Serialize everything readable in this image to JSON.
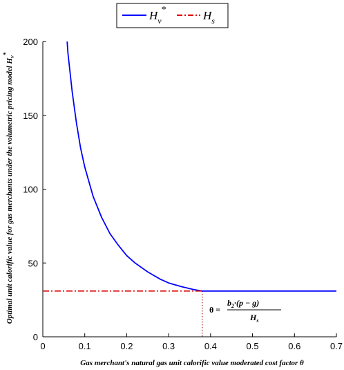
{
  "chart_data": {
    "type": "line",
    "xlabel": "Gas merchant's natural gas unit calorific value moderated cost factor θ",
    "ylabel": "Optimal unit calorific value for gas merchants under the volumetric pricing model H",
    "ylabel_sub": "v",
    "ylabel_sup": "*",
    "xlim": [
      0,
      0.7
    ],
    "ylim": [
      0,
      200
    ],
    "x_ticks": [
      "0",
      "0.1",
      "0.2",
      "0.3",
      "0.4",
      "0.5",
      "0.6",
      "0.7"
    ],
    "y_ticks": [
      "0",
      "50",
      "100",
      "150",
      "200"
    ],
    "legend_position": "top-center",
    "series": [
      {
        "name": "H",
        "name_sub": "v",
        "name_sup": "*",
        "color": "#0000ff",
        "style": "solid",
        "x": [
          0.058,
          0.06,
          0.07,
          0.08,
          0.09,
          0.1,
          0.12,
          0.14,
          0.16,
          0.18,
          0.2,
          0.22,
          0.25,
          0.28,
          0.3,
          0.33,
          0.36,
          0.38,
          0.4,
          0.5,
          0.6,
          0.7
        ],
        "y": [
          200,
          192,
          166,
          145,
          128,
          115,
          95,
          81,
          70,
          62,
          55,
          50,
          44,
          39,
          36.5,
          34,
          32,
          31,
          31,
          31,
          31,
          31
        ]
      },
      {
        "name": "H",
        "name_sub": "s",
        "color": "#dd0000",
        "style": "dash-dot",
        "x": [
          0,
          0.38
        ],
        "y": [
          31,
          31
        ]
      }
    ],
    "annotations": [
      {
        "type": "vertical-dotted-line",
        "x": 0.38,
        "y_from": 0,
        "y_to": 31,
        "color": "#990000"
      },
      {
        "type": "formula",
        "lhs": "θ",
        "eq": "=",
        "numerator": "b",
        "numerator_sub": "2",
        "numerator_rest": "·(p − g)",
        "denominator": "H",
        "denominator_sub": "s"
      }
    ]
  }
}
